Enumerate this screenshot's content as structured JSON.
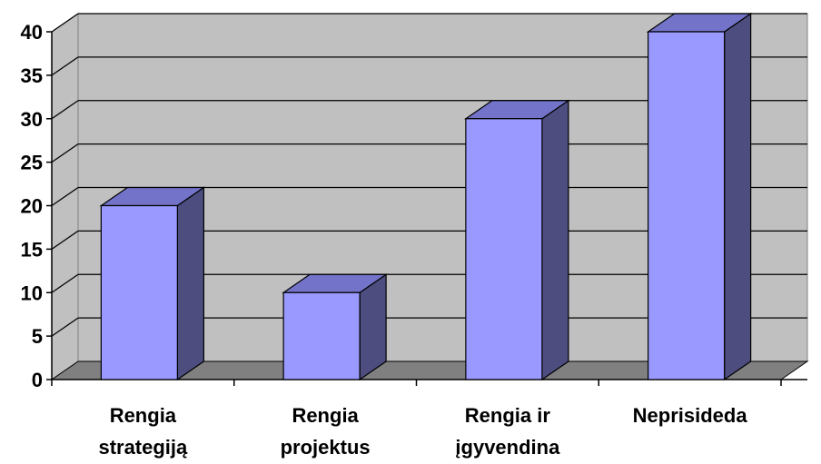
{
  "chart_data": {
    "type": "bar",
    "categories": [
      [
        "Rengia",
        "strategiją"
      ],
      [
        "Rengia",
        "projektus"
      ],
      [
        "Rengia ir",
        "įgyvendina"
      ],
      [
        "Neprisideda"
      ]
    ],
    "values": [
      20,
      10,
      30,
      40
    ],
    "ylim": [
      0,
      40
    ],
    "yticks": [
      "0",
      "5",
      "10",
      "15",
      "20",
      "25",
      "30",
      "35",
      "40"
    ],
    "title": "",
    "xlabel": "",
    "ylabel": "",
    "grid": true,
    "legend": "none",
    "colors": {
      "wall": "#c0c0c0",
      "floor": "#808080",
      "bar_front": "#9999ff",
      "bar_top": "#7373c9",
      "bar_side": "#4d4d80",
      "grid": "#000000"
    }
  }
}
